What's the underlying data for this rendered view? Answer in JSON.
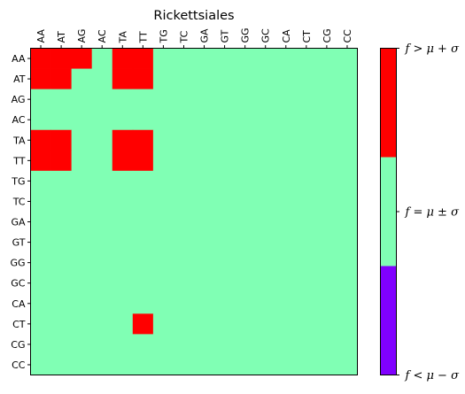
{
  "chart_data": {
    "type": "heatmap",
    "title": "Rickettsiales",
    "xlabel": "",
    "ylabel": "",
    "x_categories": [
      "AA",
      "AT",
      "AG",
      "AC",
      "TA",
      "TT",
      "TG",
      "TC",
      "GA",
      "GT",
      "GG",
      "GC",
      "CA",
      "CT",
      "CG",
      "CC"
    ],
    "y_categories": [
      "AA",
      "AT",
      "AG",
      "AC",
      "TA",
      "TT",
      "TG",
      "TC",
      "GA",
      "GT",
      "GG",
      "GC",
      "CA",
      "CT",
      "CG",
      "CC"
    ],
    "levels": [
      {
        "value": -1,
        "label": "f < μ − σ",
        "color": "#8000ff"
      },
      {
        "value": 0,
        "label": "f = μ ± σ",
        "color": "#80ffb4"
      },
      {
        "value": 1,
        "label": "f > μ + σ",
        "color": "#ff0000"
      }
    ],
    "values": [
      [
        1,
        1,
        1,
        0,
        1,
        1,
        0,
        0,
        0,
        0,
        0,
        0,
        0,
        0,
        0,
        0
      ],
      [
        1,
        1,
        0,
        0,
        1,
        1,
        0,
        0,
        0,
        0,
        0,
        0,
        0,
        0,
        0,
        0
      ],
      [
        0,
        0,
        0,
        0,
        0,
        0,
        0,
        0,
        0,
        0,
        0,
        0,
        0,
        0,
        0,
        0
      ],
      [
        0,
        0,
        0,
        0,
        0,
        0,
        0,
        0,
        0,
        0,
        0,
        0,
        0,
        0,
        0,
        0
      ],
      [
        1,
        1,
        0,
        0,
        1,
        1,
        0,
        0,
        0,
        0,
        0,
        0,
        0,
        0,
        0,
        0
      ],
      [
        1,
        1,
        0,
        0,
        1,
        1,
        0,
        0,
        0,
        0,
        0,
        0,
        0,
        0,
        0,
        0
      ],
      [
        0,
        0,
        0,
        0,
        0,
        0,
        0,
        0,
        0,
        0,
        0,
        0,
        0,
        0,
        0,
        0
      ],
      [
        0,
        0,
        0,
        0,
        0,
        0,
        0,
        0,
        0,
        0,
        0,
        0,
        0,
        0,
        0,
        0
      ],
      [
        0,
        0,
        0,
        0,
        0,
        0,
        0,
        0,
        0,
        0,
        0,
        0,
        0,
        0,
        0,
        0
      ],
      [
        0,
        0,
        0,
        0,
        0,
        0,
        0,
        0,
        0,
        0,
        0,
        0,
        0,
        0,
        0,
        0
      ],
      [
        0,
        0,
        0,
        0,
        0,
        0,
        0,
        0,
        0,
        0,
        0,
        0,
        0,
        0,
        0,
        0
      ],
      [
        0,
        0,
        0,
        0,
        0,
        0,
        0,
        0,
        0,
        0,
        0,
        0,
        0,
        0,
        0,
        0
      ],
      [
        0,
        0,
        0,
        0,
        0,
        0,
        0,
        0,
        0,
        0,
        0,
        0,
        0,
        0,
        0,
        0
      ],
      [
        0,
        0,
        0,
        0,
        0,
        1,
        0,
        0,
        0,
        0,
        0,
        0,
        0,
        0,
        0,
        0
      ],
      [
        0,
        0,
        0,
        0,
        0,
        0,
        0,
        0,
        0,
        0,
        0,
        0,
        0,
        0,
        0,
        0
      ],
      [
        0,
        0,
        0,
        0,
        0,
        0,
        0,
        0,
        0,
        0,
        0,
        0,
        0,
        0,
        0,
        0
      ]
    ],
    "x_ticks_position": "top",
    "grid": false,
    "colorbar": {
      "position": "right",
      "tick_labels": [
        "f > μ + σ",
        "f = μ ± σ",
        "f < μ − σ"
      ]
    }
  }
}
